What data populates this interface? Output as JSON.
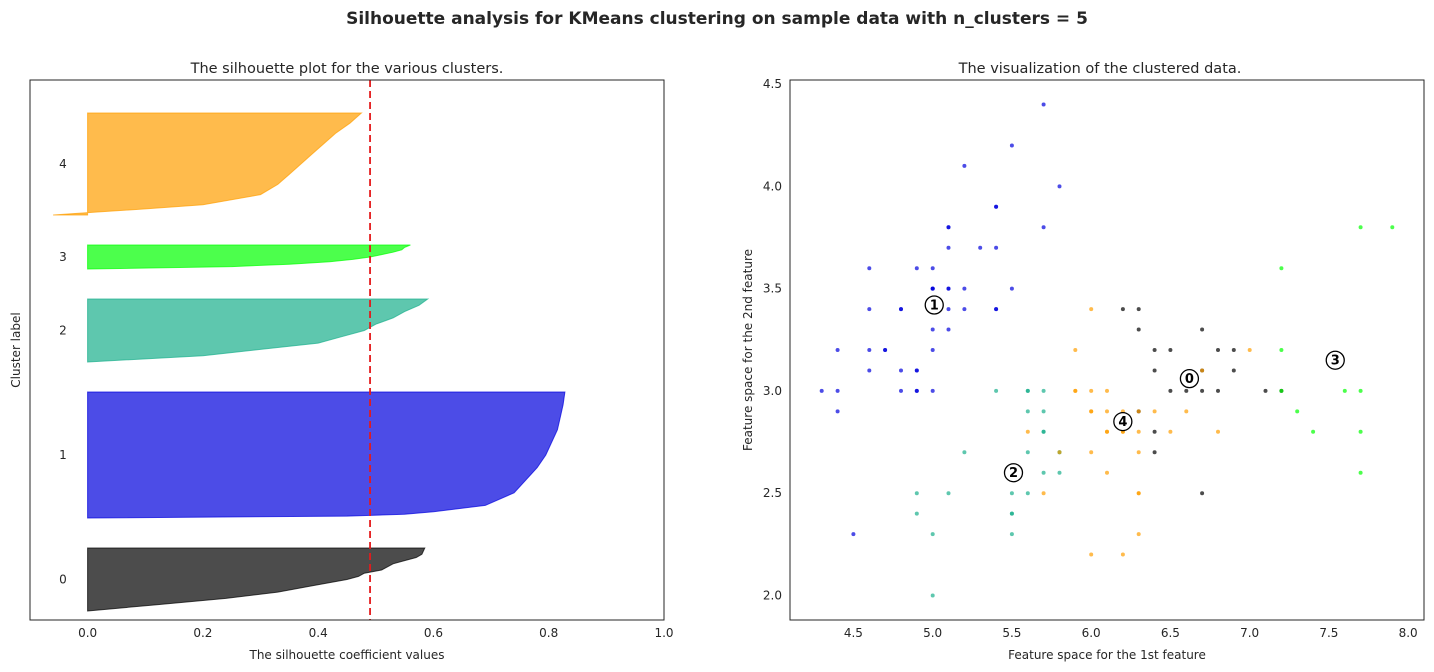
{
  "suptitle": "Silhouette analysis for KMeans clustering on sample data with n_clusters = 5",
  "chart_data": [
    {
      "type": "area",
      "title": "The silhouette plot for the various clusters.",
      "xlabel": "The silhouette coefficient values",
      "ylabel": "Cluster label",
      "xlim": [
        -0.1,
        1.0
      ],
      "ylim": [
        0,
        180
      ],
      "xticks": [
        "0.0",
        "0.2",
        "0.4",
        "0.6",
        "0.8",
        "1.0"
      ],
      "xtick_values": [
        0.0,
        0.2,
        0.4,
        0.6,
        0.8,
        1.0
      ],
      "grid": false,
      "average_silhouette_score": 0.49,
      "clusters": [
        {
          "label": "0",
          "y_lower": 3,
          "y_upper": 24,
          "color": "#000000",
          "profile": [
            [
              0,
              0.0
            ],
            [
              0.1,
              0.12
            ],
            [
              0.2,
              0.24
            ],
            [
              0.3,
              0.33
            ],
            [
              0.4,
              0.39
            ],
            [
              0.45,
              0.42
            ],
            [
              0.5,
              0.45
            ],
            [
              0.55,
              0.47
            ],
            [
              0.6,
              0.48
            ],
            [
              0.65,
              0.51
            ],
            [
              0.7,
              0.52
            ],
            [
              0.75,
              0.53
            ],
            [
              0.8,
              0.55
            ],
            [
              0.85,
              0.57
            ],
            [
              0.9,
              0.58
            ],
            [
              1.0,
              0.585
            ]
          ]
        },
        {
          "label": "1",
          "y_lower": 34,
          "y_upper": 76,
          "color": "#0000dd",
          "profile": [
            [
              0,
              0.0
            ],
            [
              0.015,
              0.45
            ],
            [
              0.03,
              0.55
            ],
            [
              0.05,
              0.6
            ],
            [
              0.1,
              0.69
            ],
            [
              0.2,
              0.74
            ],
            [
              0.3,
              0.76
            ],
            [
              0.4,
              0.78
            ],
            [
              0.5,
              0.795
            ],
            [
              0.6,
              0.805
            ],
            [
              0.7,
              0.815
            ],
            [
              0.8,
              0.82
            ],
            [
              0.9,
              0.825
            ],
            [
              1.0,
              0.828
            ]
          ]
        },
        {
          "label": "2",
          "y_lower": 86,
          "y_upper": 107,
          "color": "#1aaf8c",
          "profile": [
            [
              0,
              0.0
            ],
            [
              0.1,
              0.2
            ],
            [
              0.2,
              0.3
            ],
            [
              0.3,
              0.4
            ],
            [
              0.4,
              0.44
            ],
            [
              0.5,
              0.48
            ],
            [
              0.6,
              0.5
            ],
            [
              0.7,
              0.53
            ],
            [
              0.8,
              0.55
            ],
            [
              0.9,
              0.575
            ],
            [
              1.0,
              0.59
            ]
          ]
        },
        {
          "label": "3",
          "y_lower": 117,
          "y_upper": 125,
          "color": "#00ff00",
          "profile": [
            [
              0,
              0.0
            ],
            [
              0.1,
              0.25
            ],
            [
              0.2,
              0.35
            ],
            [
              0.3,
              0.42
            ],
            [
              0.4,
              0.46
            ],
            [
              0.5,
              0.49
            ],
            [
              0.6,
              0.51
            ],
            [
              0.7,
              0.53
            ],
            [
              0.8,
              0.545
            ],
            [
              0.9,
              0.55
            ],
            [
              1.0,
              0.56
            ]
          ]
        },
        {
          "label": "4",
          "y_lower": 135,
          "y_upper": 169,
          "color": "#ff9e00",
          "profile": [
            [
              0,
              -0.06
            ],
            [
              0.03,
              0.02
            ],
            [
              0.06,
              0.1
            ],
            [
              0.1,
              0.2
            ],
            [
              0.2,
              0.3
            ],
            [
              0.3,
              0.33
            ],
            [
              0.4,
              0.35
            ],
            [
              0.5,
              0.37
            ],
            [
              0.6,
              0.39
            ],
            [
              0.7,
              0.41
            ],
            [
              0.8,
              0.43
            ],
            [
              0.9,
              0.455
            ],
            [
              1.0,
              0.475
            ]
          ]
        }
      ]
    },
    {
      "type": "scatter",
      "title": "The visualization of the clustered data.",
      "xlabel": "Feature space for the 1st feature",
      "ylabel": "Feature space for the 2nd feature",
      "xlim": [
        4.1,
        8.1
      ],
      "ylim": [
        1.88,
        4.52
      ],
      "xticks": [
        "4.5",
        "5.0",
        "5.5",
        "6.0",
        "6.5",
        "7.0",
        "7.5",
        "8.0"
      ],
      "xtick_values": [
        4.5,
        5.0,
        5.5,
        6.0,
        6.5,
        7.0,
        7.5,
        8.0
      ],
      "yticks": [
        "2.0",
        "2.5",
        "3.0",
        "3.5",
        "4.0",
        "4.5"
      ],
      "ytick_values": [
        2.0,
        2.5,
        3.0,
        3.5,
        4.0,
        4.5
      ],
      "grid": false,
      "series": [
        {
          "label": "0",
          "color": "#000000",
          "points": [
            [
              6.4,
              2.8
            ],
            [
              6.4,
              2.7
            ],
            [
              6.3,
              2.9
            ],
            [
              6.4,
              3.2
            ],
            [
              6.5,
              3.2
            ],
            [
              6.5,
              3.0
            ],
            [
              6.6,
              3.0
            ],
            [
              6.7,
              3.1
            ],
            [
              6.7,
              3.0
            ],
            [
              6.7,
              3.3
            ],
            [
              6.8,
              3.2
            ],
            [
              6.8,
              3.0
            ],
            [
              6.9,
              3.2
            ],
            [
              6.9,
              3.1
            ],
            [
              7.1,
              3.0
            ],
            [
              7.2,
              3.0
            ],
            [
              6.7,
              2.5
            ],
            [
              6.2,
              3.4
            ],
            [
              6.3,
              3.4
            ],
            [
              6.3,
              3.3
            ],
            [
              6.4,
              3.1
            ]
          ]
        },
        {
          "label": "1",
          "color": "#0000dd",
          "points": [
            [
              4.3,
              3.0
            ],
            [
              4.4,
              2.9
            ],
            [
              4.4,
              3.0
            ],
            [
              4.4,
              3.2
            ],
            [
              4.5,
              2.3
            ],
            [
              4.6,
              3.1
            ],
            [
              4.6,
              3.2
            ],
            [
              4.6,
              3.4
            ],
            [
              4.6,
              3.6
            ],
            [
              4.7,
              3.2
            ],
            [
              4.7,
              3.2
            ],
            [
              4.8,
              3.0
            ],
            [
              4.8,
              3.1
            ],
            [
              4.8,
              3.4
            ],
            [
              4.8,
              3.4
            ],
            [
              4.9,
              3.0
            ],
            [
              4.9,
              3.1
            ],
            [
              4.9,
              3.1
            ],
            [
              4.9,
              3.6
            ],
            [
              5.0,
              3.0
            ],
            [
              5.0,
              3.2
            ],
            [
              5.0,
              3.3
            ],
            [
              5.0,
              3.4
            ],
            [
              5.0,
              3.5
            ],
            [
              5.0,
              3.5
            ],
            [
              5.0,
              3.6
            ],
            [
              5.1,
              3.3
            ],
            [
              5.1,
              3.4
            ],
            [
              5.1,
              3.5
            ],
            [
              5.1,
              3.5
            ],
            [
              5.1,
              3.7
            ],
            [
              5.1,
              3.8
            ],
            [
              5.1,
              3.8
            ],
            [
              5.2,
              3.4
            ],
            [
              5.2,
              3.5
            ],
            [
              5.2,
              4.1
            ],
            [
              5.3,
              3.7
            ],
            [
              5.4,
              3.4
            ],
            [
              5.4,
              3.4
            ],
            [
              5.4,
              3.7
            ],
            [
              5.4,
              3.9
            ],
            [
              5.4,
              3.9
            ],
            [
              5.5,
              3.5
            ],
            [
              5.5,
              4.2
            ],
            [
              5.7,
              3.8
            ],
            [
              5.7,
              4.4
            ],
            [
              5.8,
              4.0
            ],
            [
              4.9,
              3.0
            ],
            [
              5.0,
              3.5
            ]
          ]
        },
        {
          "label": "2",
          "color": "#1aaf8c",
          "points": [
            [
              5.0,
              2.0
            ],
            [
              5.0,
              2.3
            ],
            [
              4.9,
              2.4
            ],
            [
              4.9,
              2.5
            ],
            [
              5.1,
              2.5
            ],
            [
              5.2,
              2.7
            ],
            [
              5.4,
              3.0
            ],
            [
              5.5,
              2.3
            ],
            [
              5.5,
              2.4
            ],
            [
              5.5,
              2.4
            ],
            [
              5.5,
              2.5
            ],
            [
              5.6,
              2.5
            ],
            [
              5.6,
              2.9
            ],
            [
              5.6,
              3.0
            ],
            [
              5.6,
              2.7
            ],
            [
              5.7,
              2.6
            ],
            [
              5.7,
              2.8
            ],
            [
              5.7,
              2.9
            ],
            [
              5.7,
              3.0
            ],
            [
              5.8,
              2.6
            ],
            [
              5.8,
              2.7
            ],
            [
              5.8,
              2.7
            ],
            [
              5.6,
              3.0
            ],
            [
              5.7,
              2.8
            ]
          ]
        },
        {
          "label": "3",
          "color": "#00ff00",
          "points": [
            [
              7.2,
              3.6
            ],
            [
              7.2,
              3.2
            ],
            [
              7.3,
              2.9
            ],
            [
              7.4,
              2.8
            ],
            [
              7.6,
              3.0
            ],
            [
              7.7,
              3.8
            ],
            [
              7.7,
              3.0
            ],
            [
              7.7,
              2.8
            ],
            [
              7.7,
              2.6
            ],
            [
              7.9,
              3.8
            ],
            [
              7.2,
              3.0
            ]
          ]
        },
        {
          "label": "4",
          "color": "#ff9e00",
          "points": [
            [
              5.8,
              2.7
            ],
            [
              5.9,
              3.0
            ],
            [
              5.9,
              3.2
            ],
            [
              6.0,
              3.0
            ],
            [
              6.0,
              2.2
            ],
            [
              6.0,
              2.7
            ],
            [
              6.0,
              2.9
            ],
            [
              6.0,
              3.4
            ],
            [
              6.1,
              2.6
            ],
            [
              6.1,
              2.8
            ],
            [
              6.1,
              2.9
            ],
            [
              6.1,
              3.0
            ],
            [
              6.1,
              2.8
            ],
            [
              6.2,
              2.2
            ],
            [
              6.2,
              2.8
            ],
            [
              6.2,
              2.9
            ],
            [
              6.3,
              2.3
            ],
            [
              6.3,
              2.5
            ],
            [
              6.3,
              2.5
            ],
            [
              6.3,
              2.7
            ],
            [
              6.3,
              2.8
            ],
            [
              6.3,
              2.9
            ],
            [
              6.4,
              2.9
            ],
            [
              6.5,
              2.8
            ],
            [
              6.6,
              2.9
            ],
            [
              6.7,
              3.1
            ],
            [
              6.8,
              2.8
            ],
            [
              7.0,
              3.2
            ],
            [
              5.7,
              2.5
            ],
            [
              5.6,
              2.8
            ],
            [
              5.9,
              3.0
            ],
            [
              6.2,
              2.8
            ],
            [
              6.0,
              2.9
            ]
          ]
        }
      ],
      "centers": [
        {
          "label": "0",
          "x": 6.62,
          "y": 3.06
        },
        {
          "label": "1",
          "x": 5.01,
          "y": 3.42
        },
        {
          "label": "2",
          "x": 5.51,
          "y": 2.6
        },
        {
          "label": "3",
          "x": 7.54,
          "y": 3.15
        },
        {
          "label": "4",
          "x": 6.2,
          "y": 2.85
        }
      ]
    }
  ]
}
